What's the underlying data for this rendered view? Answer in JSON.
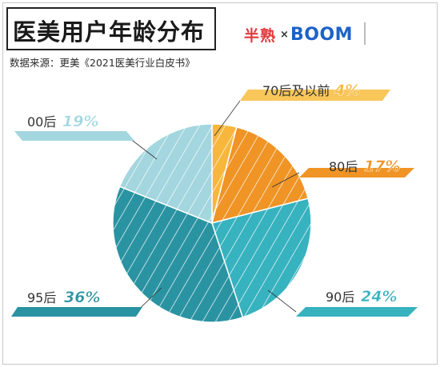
{
  "header": {
    "title": "医美用户年龄分布",
    "source": "数据来源：更美《2021医美行业白皮书》",
    "logo_left": "半熟",
    "logo_sep": "×",
    "logo_right": "BOOM"
  },
  "colors": {
    "70后及以前": "#f6b73c",
    "80后": "#ef9425",
    "90后": "#37b2bf",
    "95后": "#2a93a2",
    "00后": "#a3d6df",
    "title_border": "#222222",
    "frame": "#c8c8c8"
  },
  "chart_data": {
    "type": "pie",
    "title": "医美用户年龄分布",
    "slices": [
      {
        "label": "70后及以前",
        "value": 4,
        "display": "4%"
      },
      {
        "label": "80后",
        "value": 17,
        "display": "17%"
      },
      {
        "label": "90后",
        "value": 24,
        "display": "24%"
      },
      {
        "label": "95后",
        "value": 36,
        "display": "36%"
      },
      {
        "label": "00后",
        "value": 19,
        "display": "19%"
      }
    ],
    "start": "12 o'clock",
    "direction": "clockwise",
    "pattern": "diagonal white hatching",
    "legend": "callout labels beside slices"
  }
}
